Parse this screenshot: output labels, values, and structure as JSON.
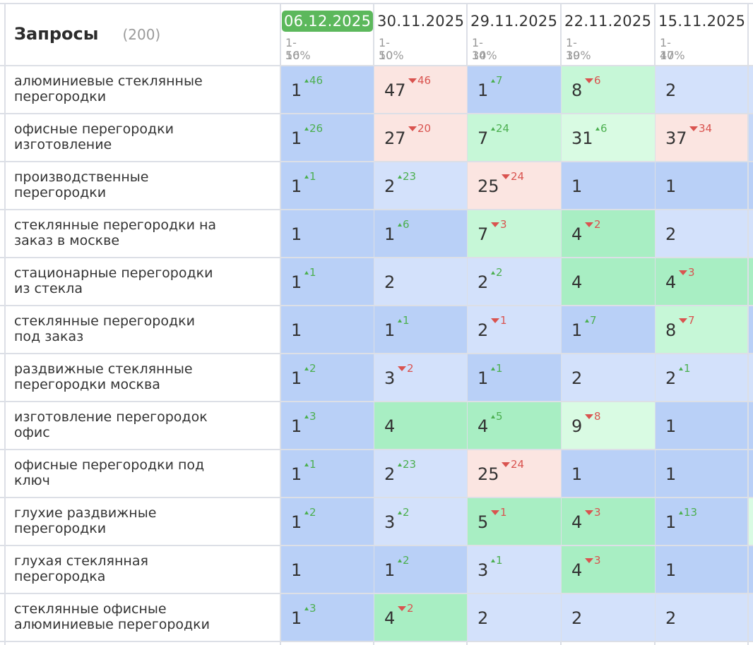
{
  "header": {
    "title": "Запросы",
    "count": "(200)"
  },
  "colors": {
    "blue_dark": "#b9d0f7",
    "blue_light": "#d3e1fb",
    "blue_mid": "#c6d8f8",
    "green": "#a8eec3",
    "green_light": "#c6f7d7",
    "green_pale": "#d9fbe3",
    "pink": "#fbe5e1",
    "grid": "#dcdfe6",
    "accent": "#5cb85c"
  },
  "columns": [
    {
      "date": "06.12.2025",
      "range": "1-10",
      "pct": "56%",
      "active": true
    },
    {
      "date": "30.11.2025",
      "range": "1-10",
      "pct": "50%",
      "active": false
    },
    {
      "date": "29.11.2025",
      "range": "1-10",
      "pct": "34%",
      "active": false
    },
    {
      "date": "22.11.2025",
      "range": "1-10",
      "pct": "39%",
      "active": false
    },
    {
      "date": "15.11.2025",
      "range": "1-10",
      "pct": "47%",
      "active": false
    }
  ],
  "rows": [
    {
      "query": [
        "алюминиевые стеклянные",
        "перегородки"
      ],
      "cells": [
        {
          "pos": "1",
          "delta": "46",
          "dir": "up",
          "bg": "blue_dark"
        },
        {
          "pos": "47",
          "delta": "46",
          "dir": "down",
          "bg": "pink"
        },
        {
          "pos": "1",
          "delta": "7",
          "dir": "up",
          "bg": "blue_dark"
        },
        {
          "pos": "8",
          "delta": "6",
          "dir": "down",
          "bg": "green_light"
        },
        {
          "pos": "2",
          "delta": "",
          "dir": "",
          "bg": "blue_light"
        }
      ]
    },
    {
      "query": [
        "офисные перегородки",
        "изготовление"
      ],
      "cells": [
        {
          "pos": "1",
          "delta": "26",
          "dir": "up",
          "bg": "blue_dark"
        },
        {
          "pos": "27",
          "delta": "20",
          "dir": "down",
          "bg": "pink"
        },
        {
          "pos": "7",
          "delta": "24",
          "dir": "up",
          "bg": "green_light"
        },
        {
          "pos": "31",
          "delta": "6",
          "dir": "up",
          "bg": "green_pale"
        },
        {
          "pos": "37",
          "delta": "34",
          "dir": "down",
          "bg": "pink"
        }
      ]
    },
    {
      "query": [
        "производственные",
        "перегородки"
      ],
      "cells": [
        {
          "pos": "1",
          "delta": "1",
          "dir": "up",
          "bg": "blue_dark"
        },
        {
          "pos": "2",
          "delta": "23",
          "dir": "up",
          "bg": "blue_light"
        },
        {
          "pos": "25",
          "delta": "24",
          "dir": "down",
          "bg": "pink"
        },
        {
          "pos": "1",
          "delta": "",
          "dir": "",
          "bg": "blue_dark"
        },
        {
          "pos": "1",
          "delta": "",
          "dir": "",
          "bg": "blue_dark"
        }
      ]
    },
    {
      "query": [
        "стеклянные перегородки на",
        "заказ в москве"
      ],
      "cells": [
        {
          "pos": "1",
          "delta": "",
          "dir": "",
          "bg": "blue_dark"
        },
        {
          "pos": "1",
          "delta": "6",
          "dir": "up",
          "bg": "blue_dark"
        },
        {
          "pos": "7",
          "delta": "3",
          "dir": "down",
          "bg": "green_light"
        },
        {
          "pos": "4",
          "delta": "2",
          "dir": "down",
          "bg": "green"
        },
        {
          "pos": "2",
          "delta": "",
          "dir": "",
          "bg": "blue_light"
        }
      ]
    },
    {
      "query": [
        "стационарные перегородки",
        "из стекла"
      ],
      "cells": [
        {
          "pos": "1",
          "delta": "1",
          "dir": "up",
          "bg": "blue_dark"
        },
        {
          "pos": "2",
          "delta": "",
          "dir": "",
          "bg": "blue_light"
        },
        {
          "pos": "2",
          "delta": "2",
          "dir": "up",
          "bg": "blue_light"
        },
        {
          "pos": "4",
          "delta": "",
          "dir": "",
          "bg": "green"
        },
        {
          "pos": "4",
          "delta": "3",
          "dir": "down",
          "bg": "green"
        }
      ]
    },
    {
      "query": [
        "стеклянные перегородки",
        "под заказ"
      ],
      "cells": [
        {
          "pos": "1",
          "delta": "",
          "dir": "",
          "bg": "blue_dark"
        },
        {
          "pos": "1",
          "delta": "1",
          "dir": "up",
          "bg": "blue_dark"
        },
        {
          "pos": "2",
          "delta": "1",
          "dir": "down",
          "bg": "blue_light"
        },
        {
          "pos": "1",
          "delta": "7",
          "dir": "up",
          "bg": "blue_dark"
        },
        {
          "pos": "8",
          "delta": "7",
          "dir": "down",
          "bg": "green_light"
        }
      ]
    },
    {
      "query": [
        "раздвижные стеклянные",
        "перегородки москва"
      ],
      "cells": [
        {
          "pos": "1",
          "delta": "2",
          "dir": "up",
          "bg": "blue_dark"
        },
        {
          "pos": "3",
          "delta": "2",
          "dir": "down",
          "bg": "blue_light"
        },
        {
          "pos": "1",
          "delta": "1",
          "dir": "up",
          "bg": "blue_dark"
        },
        {
          "pos": "2",
          "delta": "",
          "dir": "",
          "bg": "blue_light"
        },
        {
          "pos": "2",
          "delta": "1",
          "dir": "up",
          "bg": "blue_light"
        }
      ]
    },
    {
      "query": [
        "изготовление перегородок",
        "офис"
      ],
      "cells": [
        {
          "pos": "1",
          "delta": "3",
          "dir": "up",
          "bg": "blue_dark"
        },
        {
          "pos": "4",
          "delta": "",
          "dir": "",
          "bg": "green"
        },
        {
          "pos": "4",
          "delta": "5",
          "dir": "up",
          "bg": "green"
        },
        {
          "pos": "9",
          "delta": "8",
          "dir": "down",
          "bg": "green_pale"
        },
        {
          "pos": "1",
          "delta": "",
          "dir": "",
          "bg": "blue_dark"
        }
      ]
    },
    {
      "query": [
        "офисные перегородки под",
        "ключ"
      ],
      "cells": [
        {
          "pos": "1",
          "delta": "1",
          "dir": "up",
          "bg": "blue_dark"
        },
        {
          "pos": "2",
          "delta": "23",
          "dir": "up",
          "bg": "blue_light"
        },
        {
          "pos": "25",
          "delta": "24",
          "dir": "down",
          "bg": "pink"
        },
        {
          "pos": "1",
          "delta": "",
          "dir": "",
          "bg": "blue_dark"
        },
        {
          "pos": "1",
          "delta": "",
          "dir": "",
          "bg": "blue_dark"
        }
      ]
    },
    {
      "query": [
        "глухие раздвижные",
        "перегородки"
      ],
      "cells": [
        {
          "pos": "1",
          "delta": "2",
          "dir": "up",
          "bg": "blue_dark"
        },
        {
          "pos": "3",
          "delta": "2",
          "dir": "up",
          "bg": "blue_light"
        },
        {
          "pos": "5",
          "delta": "1",
          "dir": "down",
          "bg": "green"
        },
        {
          "pos": "4",
          "delta": "3",
          "dir": "down",
          "bg": "green"
        },
        {
          "pos": "1",
          "delta": "13",
          "dir": "up",
          "bg": "blue_dark"
        }
      ]
    },
    {
      "query": [
        "глухая стеклянная",
        "перегородка"
      ],
      "cells": [
        {
          "pos": "1",
          "delta": "",
          "dir": "",
          "bg": "blue_dark"
        },
        {
          "pos": "1",
          "delta": "2",
          "dir": "up",
          "bg": "blue_dark"
        },
        {
          "pos": "3",
          "delta": "1",
          "dir": "up",
          "bg": "blue_light"
        },
        {
          "pos": "4",
          "delta": "3",
          "dir": "down",
          "bg": "green"
        },
        {
          "pos": "1",
          "delta": "",
          "dir": "",
          "bg": "blue_dark"
        }
      ]
    },
    {
      "query": [
        "стеклянные офисные",
        "алюминиевые перегородки"
      ],
      "cells": [
        {
          "pos": "1",
          "delta": "3",
          "dir": "up",
          "bg": "blue_dark"
        },
        {
          "pos": "4",
          "delta": "2",
          "dir": "down",
          "bg": "green"
        },
        {
          "pos": "2",
          "delta": "",
          "dir": "",
          "bg": "blue_light"
        },
        {
          "pos": "2",
          "delta": "",
          "dir": "",
          "bg": "blue_light"
        },
        {
          "pos": "2",
          "delta": "",
          "dir": "",
          "bg": "blue_light"
        }
      ]
    }
  ],
  "right_edge_colors": [
    "blue_light",
    "blue_mid",
    "blue_dark",
    "blue_light",
    "green",
    "blue_dark",
    "blue_light",
    "blue_dark",
    "blue_dark",
    "green_pale",
    "blue_dark",
    "blue_light"
  ]
}
